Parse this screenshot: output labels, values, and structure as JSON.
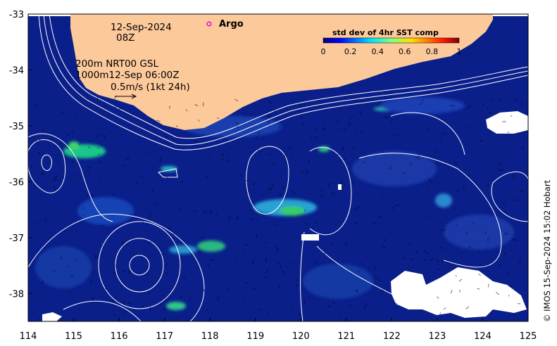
{
  "map": {
    "x_ticks": [
      "114",
      "115",
      "116",
      "117",
      "118",
      "119",
      "120",
      "121",
      "122",
      "123",
      "124",
      "125"
    ],
    "y_ticks": [
      "-33",
      "-34",
      "-35",
      "-36",
      "-37",
      "-38"
    ],
    "lon_range": [
      114,
      125
    ],
    "lat_range": [
      -38.5,
      -33
    ],
    "date_line1": "12-Sep-2024",
    "date_line2": "08Z",
    "info_line1": "200m  NRT00 GSL",
    "info_line2": "1000m12-Sep 06:00Z",
    "info_line3": "0.5m/s (1kt 24h)",
    "argo_label": "Argo",
    "copyright": "© IMOS 15-Sep-2024 15:02 Hobart",
    "colors": {
      "land": "#fcc99b",
      "ocean": "#0a1f8a",
      "argo_marker": "#e600e6",
      "contour": "#ffffff"
    }
  },
  "colorbar": {
    "title": "std dev of 4hr SST comp",
    "tick_labels": [
      "0",
      "0.2",
      "0.4",
      "0.6",
      "0.8",
      "1"
    ],
    "range": [
      0,
      1
    ],
    "colormap": "jet"
  }
}
